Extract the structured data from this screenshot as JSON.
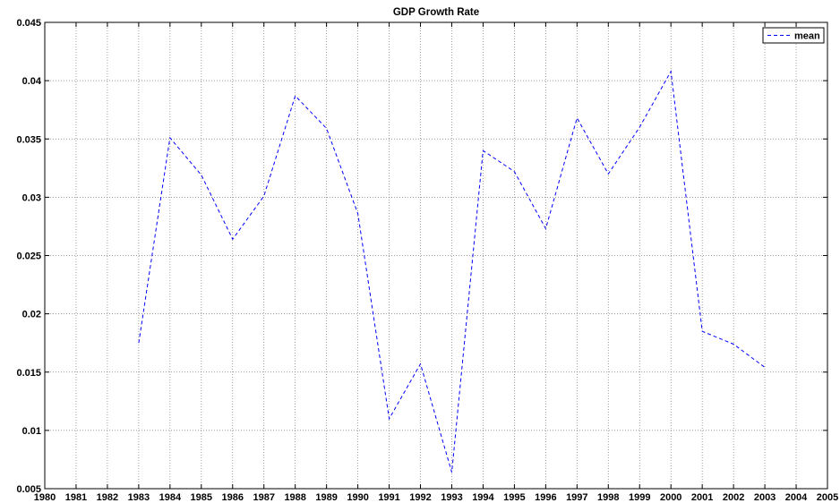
{
  "chart_data": {
    "type": "line",
    "title": "GDP Growth Rate",
    "xlabel": "",
    "ylabel": "",
    "xlim": [
      1980,
      2005
    ],
    "ylim": [
      0.005,
      0.045
    ],
    "x_ticks": [
      1980,
      1981,
      1982,
      1983,
      1984,
      1985,
      1986,
      1987,
      1988,
      1989,
      1990,
      1991,
      1992,
      1993,
      1994,
      1995,
      1996,
      1997,
      1998,
      1999,
      2000,
      2001,
      2002,
      2003,
      2004,
      2005
    ],
    "y_ticks": [
      0.005,
      0.01,
      0.015,
      0.02,
      0.025,
      0.03,
      0.035,
      0.04,
      0.045
    ],
    "y_tick_labels": [
      "0.005",
      "0.01",
      "0.015",
      "0.02",
      "0.025",
      "0.03",
      "0.035",
      "0.04",
      "0.045"
    ],
    "grid": true,
    "legend_position": "top-right",
    "series": [
      {
        "name": "mean",
        "color": "#0000ff",
        "line_style": "dashed",
        "x": [
          1983,
          1984,
          1985,
          1986,
          1987,
          1988,
          1989,
          1990,
          1991,
          1992,
          1993,
          1994,
          1995,
          1996,
          1997,
          1998,
          1999,
          2000,
          2001,
          2002,
          2003
        ],
        "y": [
          0.0175,
          0.0351,
          0.0319,
          0.0264,
          0.0301,
          0.0387,
          0.0359,
          0.0286,
          0.011,
          0.0157,
          0.0064,
          0.034,
          0.0322,
          0.0273,
          0.0368,
          0.032,
          0.036,
          0.0408,
          0.0185,
          0.0174,
          0.0154
        ]
      }
    ]
  }
}
